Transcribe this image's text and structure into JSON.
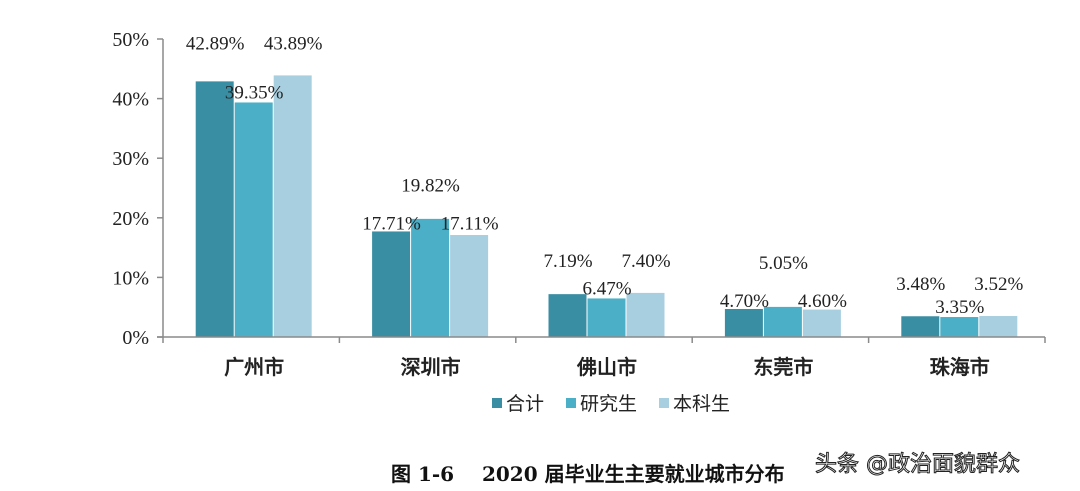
{
  "chart_data": {
    "type": "bar",
    "title": "图 1-6    2020 届毕业生主要就业城市分布",
    "xlabel": "",
    "ylabel": "",
    "ylim": [
      0,
      50
    ],
    "yticks": [
      "0%",
      "10%",
      "20%",
      "30%",
      "40%",
      "50%"
    ],
    "grid": false,
    "legend_position": "bottom",
    "categories": [
      "广州市",
      "深圳市",
      "佛山市",
      "东莞市",
      "珠海市"
    ],
    "series": [
      {
        "name": "合计",
        "color": "#3a8ea3",
        "values": [
          42.89,
          17.71,
          7.19,
          4.7,
          3.48
        ],
        "labels": [
          "42.89%",
          "17.71%",
          "7.19%",
          "4.70%",
          "3.48%"
        ]
      },
      {
        "name": "研究生",
        "color": "#4bafc7",
        "values": [
          39.35,
          19.82,
          6.47,
          5.05,
          3.35
        ],
        "labels": [
          "39.35%",
          "19.82%",
          "6.47%",
          "5.05%",
          "3.35%"
        ]
      },
      {
        "name": "本科生",
        "color": "#a8cfe0",
        "values": [
          43.89,
          17.11,
          7.4,
          4.6,
          3.52
        ],
        "labels": [
          "43.89%",
          "17.11%",
          "7.40%",
          "4.60%",
          "3.52%"
        ]
      }
    ]
  },
  "legend": {
    "items": [
      {
        "label": "合计",
        "color": "#3a8ea3"
      },
      {
        "label": "研究生",
        "color": "#4bafc7"
      },
      {
        "label": "本科生",
        "color": "#a8cfe0"
      }
    ]
  },
  "caption": "图 1-6    2020 届毕业生主要就业城市分布",
  "watermark": "头条 @政治面貌群众"
}
